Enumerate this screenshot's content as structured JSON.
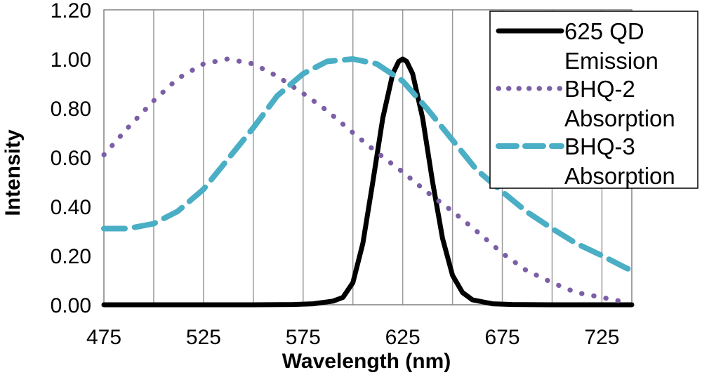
{
  "chart_data": {
    "type": "line",
    "title": "",
    "xlabel": "Wavelength (nm)",
    "ylabel": "Intensity",
    "xlim": [
      475,
      740
    ],
    "ylim": [
      0,
      1.2
    ],
    "x_ticks": [
      475,
      525,
      575,
      625,
      675,
      725
    ],
    "x_gridlines": [
      475,
      500,
      525,
      550,
      575,
      600,
      625,
      650,
      675,
      700,
      725
    ],
    "y_ticks": [
      0,
      0.2,
      0.4,
      0.6,
      0.8,
      1.0,
      1.2
    ],
    "y_tick_labels": [
      "0.00",
      "0.20",
      "0.40",
      "0.60",
      "0.80",
      "1.00",
      "1.20"
    ],
    "grid": "vertical",
    "legend_position": "top-right",
    "series": [
      {
        "name": "625 QD Emission",
        "legend_lines": [
          "625 QD",
          "Emission"
        ],
        "style": "solid",
        "color": "#000000",
        "x": [
          475,
          500,
          525,
          550,
          570,
          580,
          590,
          595,
          600,
          605,
          610,
          615,
          620,
          623,
          625,
          627,
          630,
          635,
          640,
          645,
          650,
          655,
          660,
          670,
          680,
          700,
          720,
          740
        ],
        "y": [
          0,
          0,
          0,
          0,
          0.001,
          0.004,
          0.015,
          0.03,
          0.09,
          0.25,
          0.5,
          0.76,
          0.94,
          0.99,
          1.0,
          0.99,
          0.94,
          0.76,
          0.5,
          0.27,
          0.12,
          0.05,
          0.02,
          0.004,
          0.001,
          0,
          0,
          0
        ]
      },
      {
        "name": "BHQ-2 Absorption",
        "legend_lines": [
          "BHQ-2",
          "Absorption"
        ],
        "style": "dotted",
        "color": "#7b5fa6",
        "x": [
          475,
          487,
          500,
          512,
          525,
          537,
          550,
          562,
          575,
          587,
          600,
          612,
          625,
          637,
          650,
          662,
          675,
          687,
          700,
          712,
          725,
          737
        ],
        "y": [
          0.61,
          0.72,
          0.83,
          0.92,
          0.98,
          1.0,
          0.98,
          0.93,
          0.86,
          0.79,
          0.7,
          0.62,
          0.54,
          0.46,
          0.38,
          0.3,
          0.21,
          0.14,
          0.09,
          0.05,
          0.03,
          0.01
        ]
      },
      {
        "name": "BHQ-3 Absorption",
        "legend_lines": [
          "BHQ-3",
          "Absorption"
        ],
        "style": "dashed",
        "color": "#4aaec5",
        "x": [
          475,
          487,
          500,
          512,
          525,
          537,
          550,
          562,
          575,
          587,
          600,
          612,
          625,
          637,
          650,
          662,
          675,
          687,
          700,
          712,
          725,
          737,
          740
        ],
        "y": [
          0.31,
          0.31,
          0.33,
          0.38,
          0.47,
          0.59,
          0.72,
          0.85,
          0.94,
          0.99,
          1.0,
          0.98,
          0.91,
          0.8,
          0.67,
          0.55,
          0.46,
          0.38,
          0.31,
          0.25,
          0.2,
          0.15,
          0.14
        ]
      }
    ]
  }
}
